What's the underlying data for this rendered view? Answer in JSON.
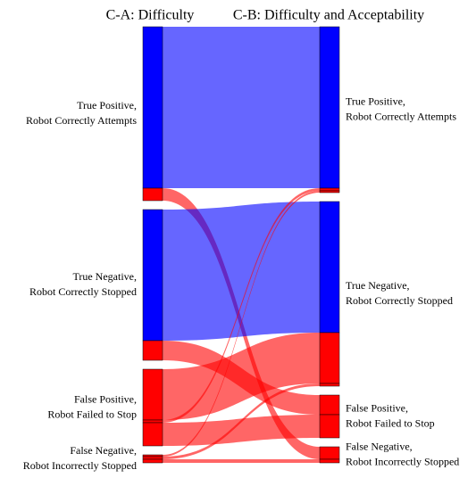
{
  "chart_data": {
    "type": "sankey",
    "columns": [
      {
        "title": "C-A: Difficulty",
        "nodes": [
          {
            "lines": [
              "True Positive,",
              "Robot Correctly Attempts"
            ]
          },
          {
            "lines": [
              "True Negative,",
              "Robot Correctly Stopped"
            ]
          },
          {
            "lines": [
              "False Positive,",
              "Robot Failed to Stop"
            ]
          },
          {
            "lines": [
              "False Negative,",
              "Robot Incorrectly Stopped"
            ]
          }
        ]
      },
      {
        "title": "C-B: Difficulty and Acceptability",
        "nodes": [
          {
            "lines": [
              "True Positive,",
              "Robot Correctly Attempts"
            ]
          },
          {
            "lines": [
              "True Negative,",
              "Robot Correctly Stopped"
            ]
          },
          {
            "lines": [
              "False Positive,",
              "Robot Failed to Stop"
            ]
          },
          {
            "lines": [
              "False Negative,",
              "Robot Incorrectly Stopped"
            ]
          }
        ]
      }
    ],
    "links": [
      {
        "source": 0,
        "target": 0,
        "value": 181,
        "color": "#0000ff"
      },
      {
        "source": 0,
        "target": 3,
        "value": 14,
        "color": "#ff0000"
      },
      {
        "source": 1,
        "target": 1,
        "value": 147,
        "color": "#0000ff"
      },
      {
        "source": 1,
        "target": 2,
        "value": 22,
        "color": "#ff0000"
      },
      {
        "source": 2,
        "target": 1,
        "value": 57,
        "color": "#ff0000"
      },
      {
        "source": 2,
        "target": 0,
        "value": 3,
        "color": "#ff0000"
      },
      {
        "source": 2,
        "target": 2,
        "value": 26,
        "color": "#ff0000"
      },
      {
        "source": 3,
        "target": 0,
        "value": 2,
        "color": "#ff0000"
      },
      {
        "source": 3,
        "target": 1,
        "value": 3,
        "color": "#ff0000"
      },
      {
        "source": 3,
        "target": 3,
        "value": 4,
        "color": "#ff0000"
      }
    ]
  }
}
